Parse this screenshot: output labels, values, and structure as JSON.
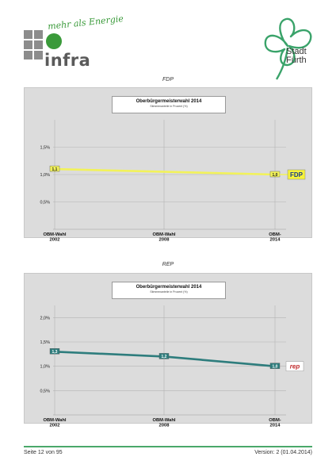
{
  "header": {
    "infra_logo": {
      "tagline": "mehr als Energie",
      "wordmark": "infra",
      "brand_color": "#3a9a3a"
    },
    "city_logo": {
      "line1": "Stadt",
      "line2": "Fürth",
      "brand_color": "#3aa36a"
    }
  },
  "charts": [
    {
      "section_label": "FDP",
      "box_title": "Oberbürgermeisterwahl 2014",
      "box_subtitle": "Stimmenanteile in Prozent (%)",
      "party_badge": "FDP"
    },
    {
      "section_label": "REP",
      "box_title": "Oberbürgermeisterwahl 2014",
      "box_subtitle": "Stimmenanteile in Prozent (%)",
      "party_badge": "rep"
    }
  ],
  "chart_data": [
    {
      "type": "line",
      "categories": [
        "OBM-Wahl\n2002",
        "OBM-Wahl\n2008",
        "OBM-\n2014"
      ],
      "series": [
        {
          "values": [
            1.1,
            null,
            1.0
          ],
          "color": "#f2f25a",
          "labels": [
            "1,1",
            "",
            "1,0"
          ]
        }
      ],
      "yticks": [
        "0,5%",
        "1,0%",
        "1,5%"
      ],
      "ylim": [
        0,
        2
      ],
      "grid": true
    },
    {
      "type": "line",
      "categories": [
        "OBM-Wahl\n2002",
        "OBM-Wahl\n2008",
        "OBM-\n2014"
      ],
      "series": [
        {
          "values": [
            1.3,
            1.2,
            1.0
          ],
          "color": "#2e7d7d",
          "labels": [
            "1,3",
            "1,2",
            "1,0"
          ]
        }
      ],
      "yticks": [
        "0,5%",
        "1,0%",
        "1,5%",
        "2,0%"
      ],
      "ylim": [
        0,
        2.25
      ],
      "grid": true
    }
  ],
  "footer": {
    "left": "Seite 12 von 95",
    "right": "Version: 2 (01.04.2014)"
  }
}
